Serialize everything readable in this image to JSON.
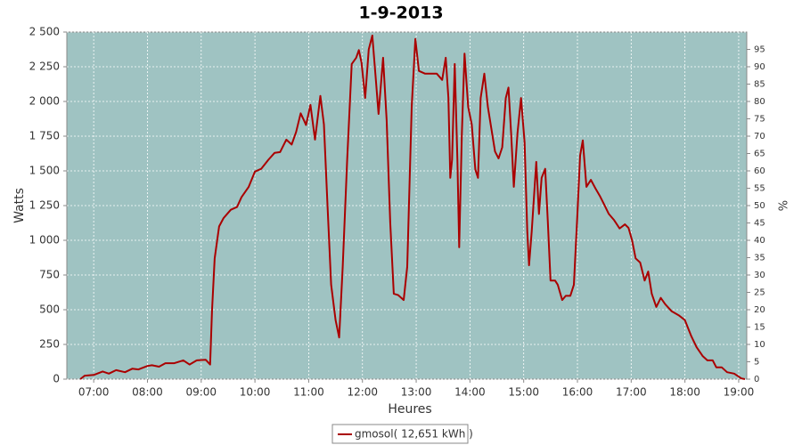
{
  "chart_data": {
    "type": "line",
    "title": "1-9-2013",
    "x_label": "Heures",
    "y_label": "Watts",
    "y2_label": "%",
    "xlim": [
      "06:30",
      "19:09"
    ],
    "xticks": [
      "07:00",
      "08:00",
      "09:00",
      "10:00",
      "11:00",
      "12:00",
      "13:00",
      "14:00",
      "15:00",
      "16:00",
      "17:00",
      "18:00",
      "19:00"
    ],
    "ylim": [
      0,
      2500
    ],
    "yticks": [
      0,
      250,
      500,
      750,
      {
        "value": 1000,
        "label": "1 000"
      },
      {
        "value": 1250,
        "label": "1 250"
      },
      {
        "value": 1500,
        "label": "1 500"
      },
      {
        "value": 1750,
        "label": "1 750"
      },
      {
        "value": 2000,
        "label": "2 000"
      },
      {
        "value": 2250,
        "label": "2 250"
      },
      {
        "value": 2500,
        "label": "2 500"
      }
    ],
    "y2lim": [
      0,
      100
    ],
    "y2ticks": [
      0,
      5,
      10,
      15,
      20,
      25,
      30,
      35,
      40,
      45,
      50,
      55,
      60,
      65,
      70,
      75,
      80,
      85,
      90,
      95
    ],
    "grid": true,
    "legend": "bottom",
    "plot_background": "#9fc3c2",
    "x": [
      "06:45",
      "06:50",
      "07:00",
      "07:10",
      "07:17",
      "07:25",
      "07:35",
      "07:43",
      "07:50",
      "08:00",
      "08:05",
      "08:13",
      "08:20",
      "08:30",
      "08:40",
      "08:47",
      "08:55",
      "09:05",
      "09:10",
      "09:12",
      "09:15",
      "09:20",
      "09:25",
      "09:33",
      "09:40",
      "09:45",
      "09:53",
      "10:00",
      "10:07",
      "10:15",
      "10:22",
      "10:28",
      "10:35",
      "10:41",
      "10:46",
      "10:51",
      "10:55",
      "10:57",
      "11:02",
      "11:07",
      "11:13",
      "11:17",
      "11:21",
      "11:25",
      "11:30",
      "11:34",
      "11:38",
      "11:43",
      "11:48",
      "11:53",
      "11:56",
      "11:59",
      "12:03",
      "12:07",
      "12:11",
      "12:15",
      "12:18",
      "12:23",
      "12:27",
      "12:31",
      "12:35",
      "12:40",
      "12:46",
      "12:50",
      "12:55",
      "12:59",
      "13:03",
      "13:10",
      "13:18",
      "13:23",
      "13:29",
      "13:33",
      "13:36",
      "13:38",
      "13:40",
      "13:43",
      "13:46",
      "13:48",
      "13:51",
      "13:54",
      "13:58",
      "14:02",
      "14:06",
      "14:09",
      "14:12",
      "14:16",
      "14:20",
      "14:24",
      "14:28",
      "14:32",
      "14:36",
      "14:40",
      "14:43",
      "14:46",
      "14:49",
      "14:53",
      "14:57",
      "15:01",
      "15:04",
      "15:06",
      "15:09",
      "15:14",
      "15:17",
      "15:20",
      "15:24",
      "15:27",
      "15:30",
      "15:35",
      "15:38",
      "15:43",
      "15:47",
      "15:52",
      "15:56",
      "16:00",
      "16:03",
      "16:06",
      "16:10",
      "16:15",
      "16:20",
      "16:25",
      "16:30",
      "16:35",
      "16:41",
      "16:47",
      "16:53",
      "16:57",
      "17:01",
      "17:05",
      "17:10",
      "17:15",
      "17:19",
      "17:23",
      "17:28",
      "17:33",
      "17:38",
      "17:45",
      "17:53",
      "18:00",
      "18:07",
      "18:13",
      "18:20",
      "18:25",
      "18:31",
      "18:35",
      "18:41",
      "18:47",
      "18:55",
      "19:03",
      "19:07"
    ],
    "series": [
      {
        "name": "gmosol( 12,651 kWh )",
        "color": "#aa0000",
        "values": [
          0,
          25,
          30,
          55,
          40,
          65,
          50,
          75,
          70,
          95,
          100,
          90,
          115,
          115,
          135,
          105,
          135,
          140,
          105,
          490,
          870,
          1100,
          1160,
          1220,
          1240,
          1310,
          1385,
          1495,
          1515,
          1580,
          1630,
          1635,
          1725,
          1690,
          1780,
          1915,
          1860,
          1830,
          1975,
          1725,
          2040,
          1835,
          1255,
          680,
          425,
          300,
          810,
          1580,
          2270,
          2315,
          2370,
          2280,
          2025,
          2375,
          2475,
          2155,
          1910,
          2315,
          1865,
          1130,
          615,
          605,
          570,
          810,
          1960,
          2450,
          2220,
          2200,
          2200,
          2200,
          2155,
          2315,
          2025,
          1450,
          1580,
          2270,
          1580,
          950,
          1770,
          2345,
          1960,
          1835,
          1510,
          1450,
          2025,
          2200,
          1960,
          1800,
          1640,
          1590,
          1670,
          2025,
          2100,
          1770,
          1385,
          1770,
          2025,
          1705,
          1065,
          820,
          1065,
          1565,
          1190,
          1450,
          1515,
          1130,
          710,
          710,
          680,
          570,
          600,
          600,
          680,
          1195,
          1610,
          1720,
          1385,
          1435,
          1375,
          1320,
          1255,
          1190,
          1145,
          1085,
          1115,
          1090,
          1000,
          870,
          840,
          710,
          775,
          615,
          520,
          585,
          540,
          490,
          460,
          425,
          310,
          230,
          165,
          135,
          135,
          85,
          85,
          50,
          40,
          5,
          0
        ]
      }
    ]
  }
}
